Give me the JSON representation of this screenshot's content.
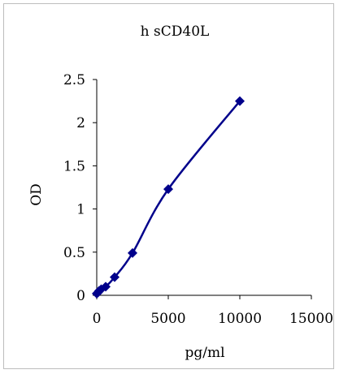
{
  "chart_data": {
    "type": "line",
    "title": "h sCD40L",
    "xlabel": "pg/ml",
    "ylabel": "OD",
    "xlim": [
      0,
      15000
    ],
    "ylim": [
      0,
      2.5
    ],
    "x_ticks": [
      "0",
      "5000",
      "10000",
      "15000"
    ],
    "y_ticks": [
      "0",
      "0.5",
      "1",
      "1.5",
      "2",
      "2.5"
    ],
    "grid": false,
    "legend": "none",
    "series": [
      {
        "marker": "diamond",
        "color": "#00008B",
        "x": [
          0,
          78,
          156,
          312,
          625,
          1250,
          2500,
          5000,
          10000
        ],
        "y": [
          0.02,
          0.03,
          0.05,
          0.07,
          0.1,
          0.21,
          0.49,
          1.23,
          2.25
        ]
      }
    ]
  }
}
